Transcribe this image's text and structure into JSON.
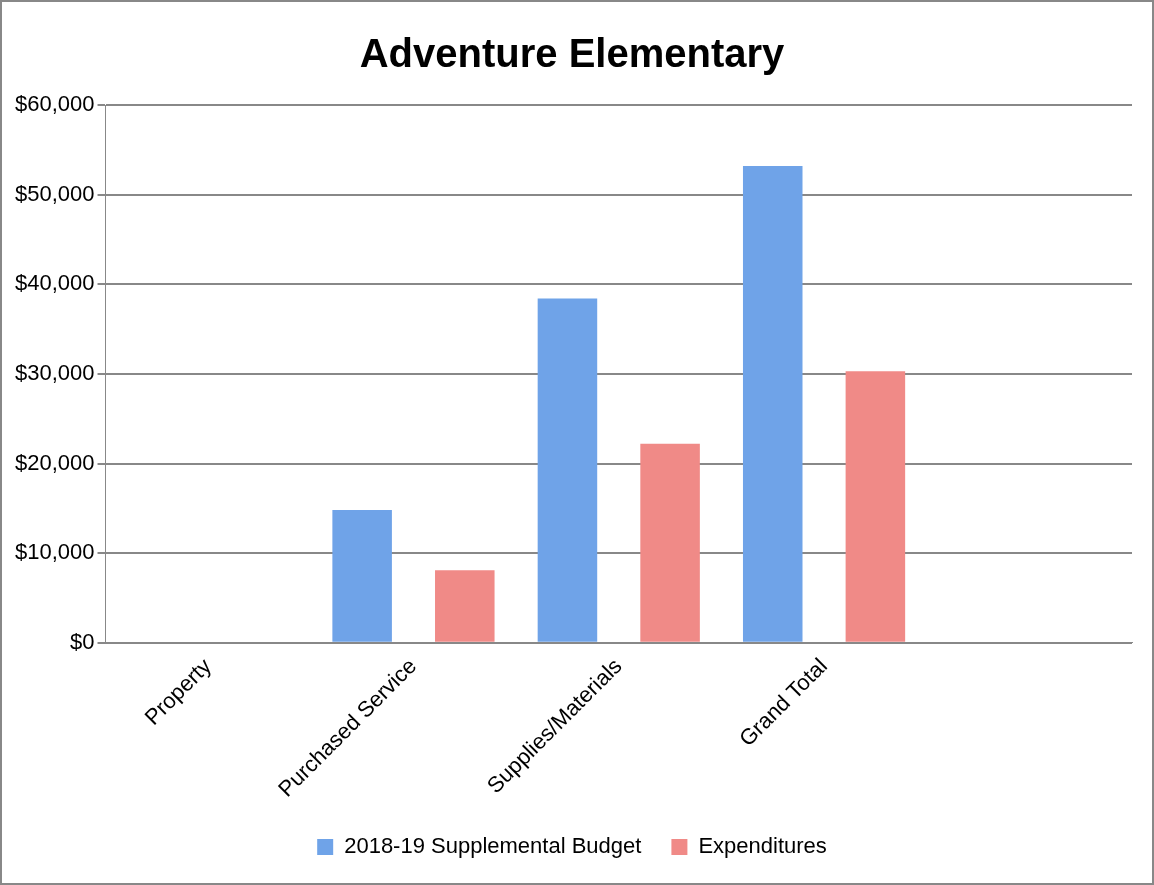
{
  "chart_data": {
    "type": "bar",
    "title": "Adventure Elementary",
    "categories": [
      "Property",
      "Purchased Service",
      "Supplies/Materials",
      "Grand Total",
      null
    ],
    "series": [
      {
        "name": "2018-19 Supplemental Budget",
        "color": "#6fa3e8",
        "values": [
          0,
          14800,
          38400,
          53200,
          null
        ]
      },
      {
        "name": "Expenditures",
        "color": "#f08a87",
        "values": [
          0,
          8100,
          22200,
          30300,
          null
        ]
      }
    ],
    "ylim": [
      0,
      60000
    ],
    "yticks": [
      {
        "value": 0,
        "label": "$0"
      },
      {
        "value": 10000,
        "label": "$10,000"
      },
      {
        "value": 20000,
        "label": "$20,000"
      },
      {
        "value": 30000,
        "label": "$30,000"
      },
      {
        "value": 40000,
        "label": "$40,000"
      },
      {
        "value": 50000,
        "label": "$50,000"
      },
      {
        "value": 60000,
        "label": "$60,000"
      }
    ],
    "grid": "y",
    "legend": "bottom"
  }
}
